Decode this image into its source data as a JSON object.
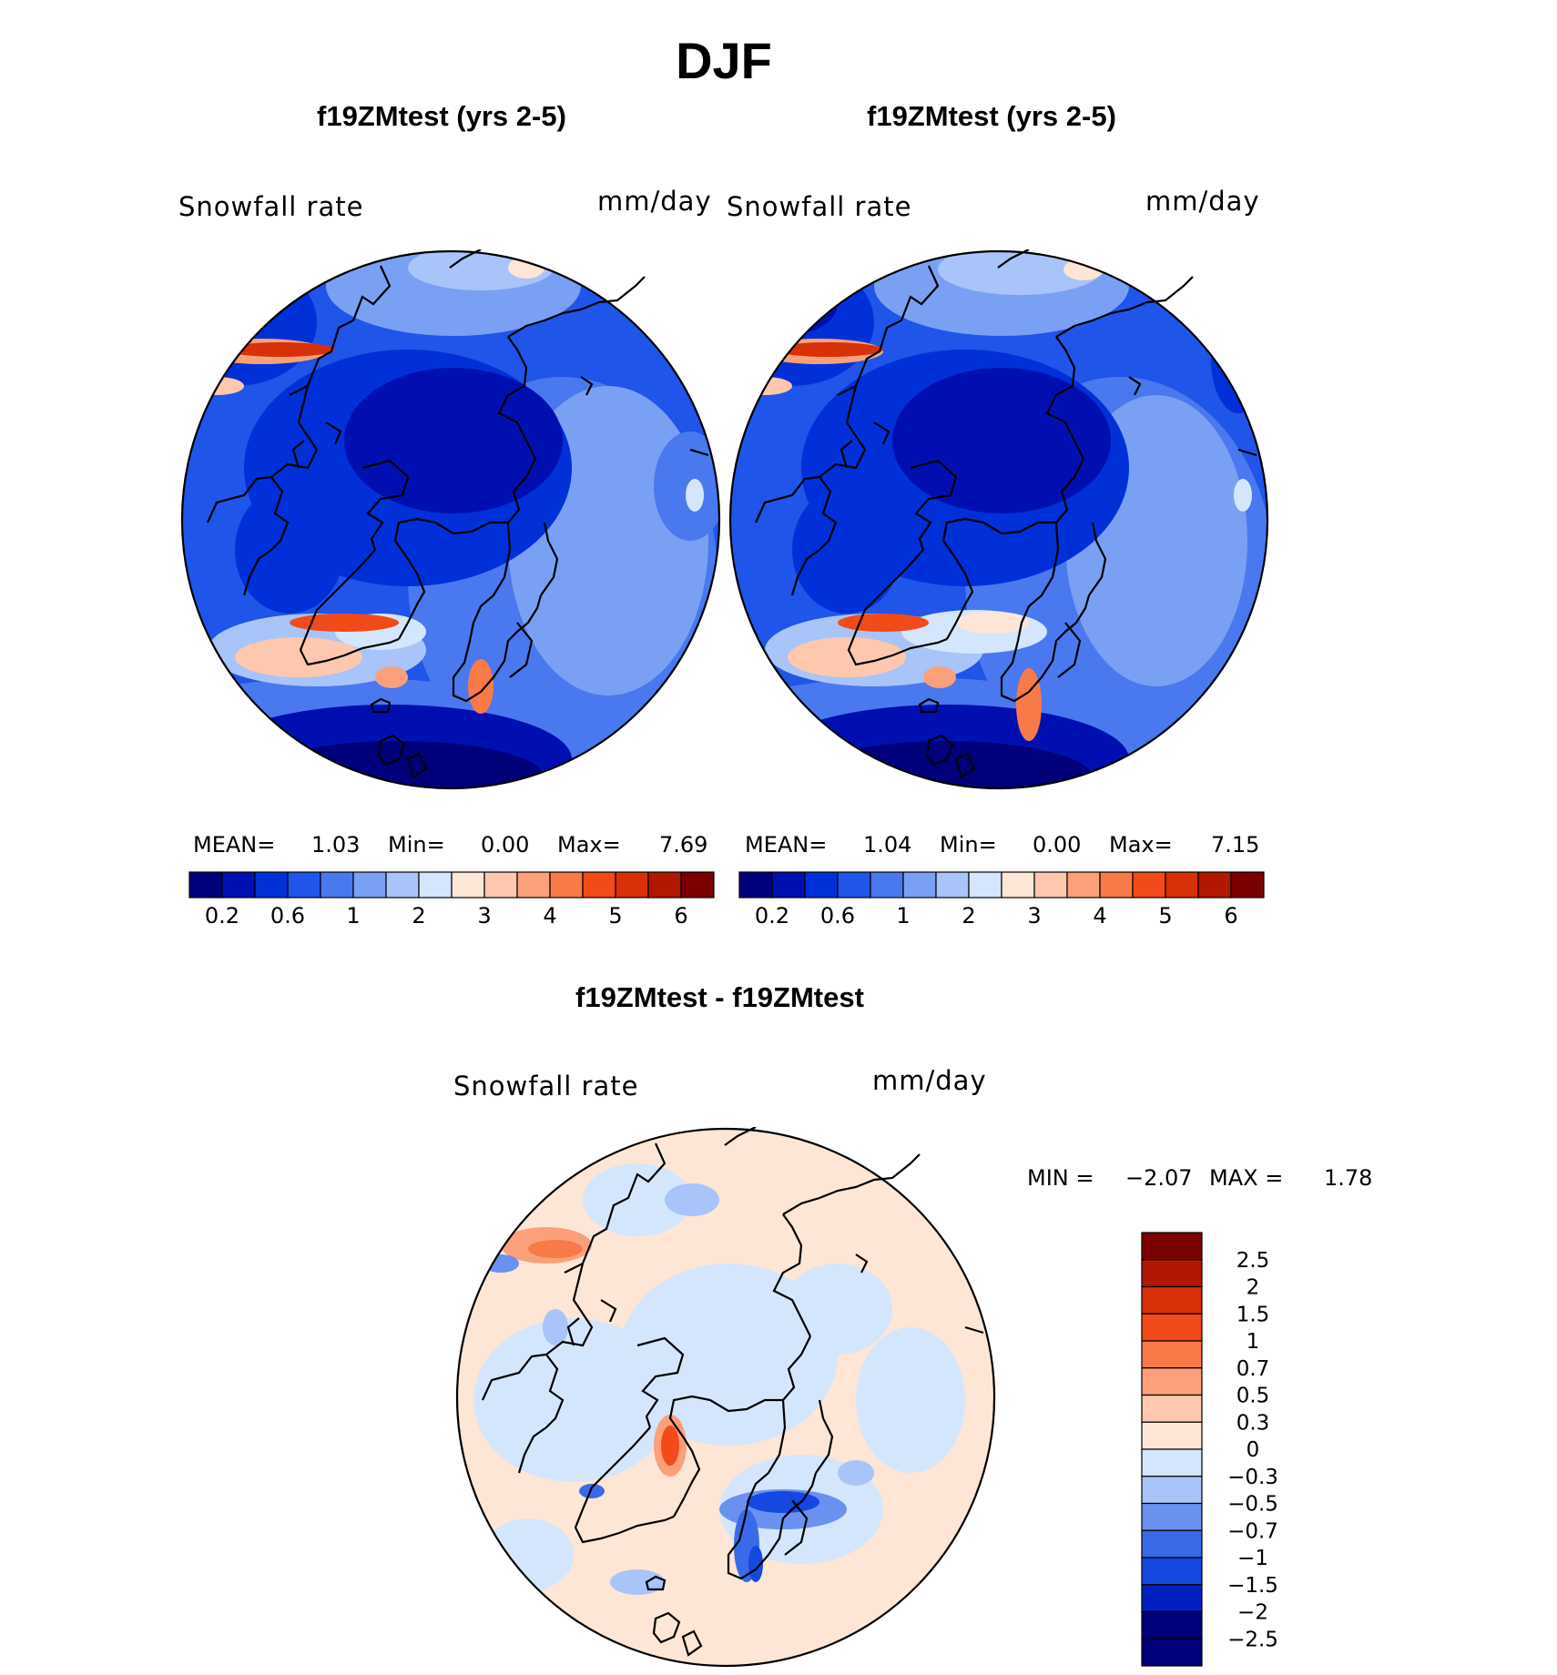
{
  "figure": {
    "title": "DJF",
    "colors": {
      "seq": [
        "#00007a",
        "#0010b0",
        "#0030d8",
        "#1f55e8",
        "#4a78ee",
        "#7aa0f4",
        "#a8c4f8",
        "#d4e6fb",
        "#fde6d6",
        "#fdc8ae",
        "#fba07a",
        "#f87a48",
        "#f24a18",
        "#d83008",
        "#b01800",
        "#7a0000"
      ],
      "diff": [
        "#00007a",
        "#0020c0",
        "#1448e0",
        "#3a6ae8",
        "#6a90f0",
        "#a8c4f8",
        "#d4e6fb",
        "#fde6d6",
        "#fdc8ae",
        "#fba07a",
        "#f87a48",
        "#f24a18",
        "#d83008",
        "#b01800",
        "#7a0000"
      ],
      "coast": "#000000"
    }
  },
  "panels": [
    {
      "title": "f19ZMtest (yrs 2-5)",
      "variable": "Snowfall rate",
      "units": "mm/day",
      "stats": {
        "mean_label": "MEAN=",
        "mean": "1.03",
        "min_label": "Min=",
        "min": "0.00",
        "max_label": "Max=",
        "max": "7.69"
      },
      "colorbar_ticks": [
        "0.2",
        "0.6",
        "1",
        "2",
        "3",
        "4",
        "5",
        "6"
      ]
    },
    {
      "title": "f19ZMtest (yrs 2-5)",
      "variable": "Snowfall rate",
      "units": "mm/day",
      "stats": {
        "mean_label": "MEAN=",
        "mean": "1.04",
        "min_label": "Min=",
        "min": "0.00",
        "max_label": "Max=",
        "max": "7.15"
      },
      "colorbar_ticks": [
        "0.2",
        "0.6",
        "1",
        "2",
        "3",
        "4",
        "5",
        "6"
      ]
    }
  ],
  "difference": {
    "title": "f19ZMtest - f19ZMtest",
    "variable": "Snowfall rate",
    "units": "mm/day",
    "stats": {
      "min_label": "MIN =",
      "min": "−2.07",
      "max_label": "MAX =",
      "max": "1.78"
    },
    "colorbar_ticks": [
      "2.5",
      "2",
      "1.5",
      "1",
      "0.7",
      "0.5",
      "0.3",
      "0",
      "−0.3",
      "−0.5",
      "−0.7",
      "−1",
      "−1.5",
      "−2",
      "−2.5"
    ]
  }
}
